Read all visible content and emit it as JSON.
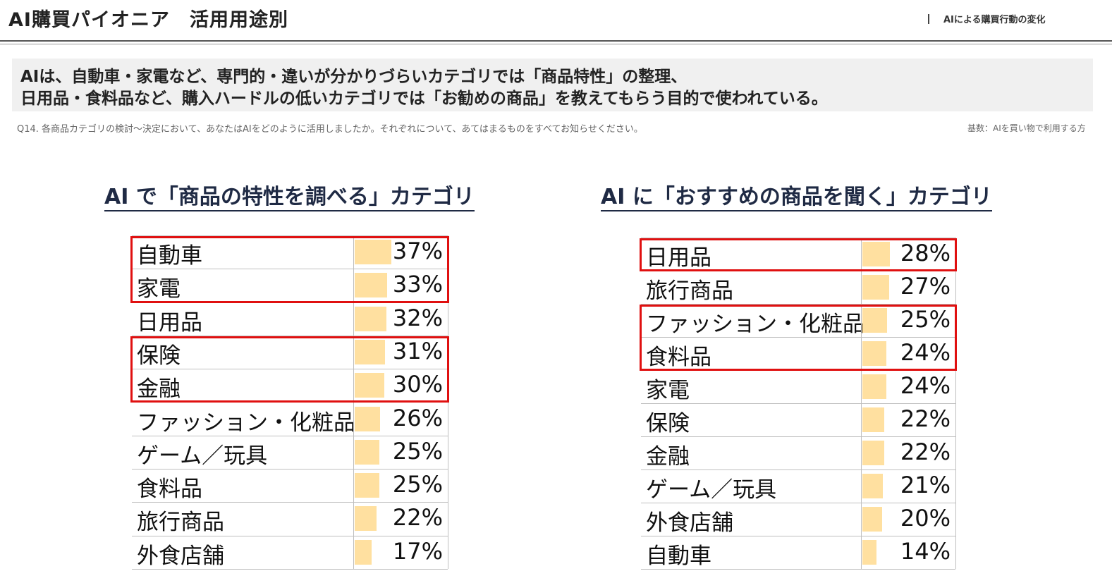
{
  "header": {
    "title": "AI購買パイオニア　活用用途別",
    "right_label": "AIによる購買行動の変化"
  },
  "summary": {
    "line1": "AIは、自動車・家電など、専門的・違いが分かりづらいカテゴリでは「商品特性」の整理、",
    "line2": "日用品・食料品など、購入ハードルの低いカテゴリでは「お勧めの商品」を教えてもらう目的で使われている。"
  },
  "question": "Q14. 各商品カテゴリの検討〜決定において、あなたはAIをどのように活用しましたか。それぞれについて、あてはまるものをすべてお知らせください。",
  "base_note": "基数：AIを買い物で利用する方",
  "colors": {
    "bar": "#ffe0a0",
    "highlight": "#e01010",
    "title": "#1f2a44"
  },
  "chart_data": [
    {
      "type": "bar",
      "title": "AI で「商品の特性を調べる」カテゴリ",
      "categories": [
        "自動車",
        "家電",
        "日用品",
        "保険",
        "金融",
        "ファッション・化粧品",
        "ゲーム／玩具",
        "食料品",
        "旅行商品",
        "外食店舗"
      ],
      "values": [
        37,
        33,
        32,
        31,
        30,
        26,
        25,
        25,
        22,
        17
      ],
      "labels": [
        "37%",
        "33%",
        "32%",
        "31%",
        "30%",
        "26%",
        "25%",
        "25%",
        "22%",
        "17%"
      ],
      "highlighted": [
        0,
        1,
        3,
        4
      ],
      "highlight_groups": [
        [
          0,
          1
        ],
        [
          3,
          4
        ]
      ],
      "unit": "%"
    },
    {
      "type": "bar",
      "title": "AI に「おすすめの商品を聞く」カテゴリ",
      "categories": [
        "日用品",
        "旅行商品",
        "ファッション・化粧品",
        "食料品",
        "家電",
        "保険",
        "金融",
        "ゲーム／玩具",
        "外食店舗",
        "自動車"
      ],
      "values": [
        28,
        27,
        25,
        24,
        24,
        22,
        22,
        21,
        20,
        14
      ],
      "labels": [
        "28%",
        "27%",
        "25%",
        "24%",
        "24%",
        "22%",
        "22%",
        "21%",
        "20%",
        "14%"
      ],
      "highlighted": [
        0,
        2,
        3
      ],
      "highlight_groups": [
        [
          0
        ],
        [
          2,
          3
        ]
      ],
      "unit": "%"
    }
  ]
}
